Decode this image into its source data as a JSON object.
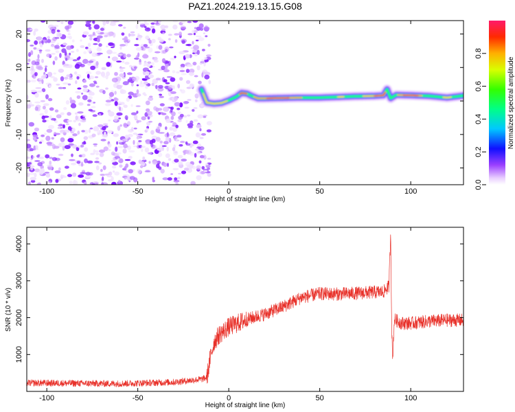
{
  "title": "PAZ1.2024.219.13.15.G08",
  "chart_data": [
    {
      "type": "heatmap",
      "xlabel": "Height of straight line (km)",
      "ylabel": "Frequency (Hz)",
      "xlim": [
        -111,
        129
      ],
      "ylim": [
        -25,
        24
      ],
      "xticks": [
        -100,
        -50,
        0,
        50,
        100
      ],
      "yticks": [
        -20,
        -10,
        0,
        10,
        20
      ],
      "noise_region_x": [
        -111,
        -15
      ],
      "ridge": {
        "x": [
          -15,
          -12,
          -8,
          -4,
          0,
          4,
          7,
          10,
          13,
          16,
          20,
          30,
          40,
          50,
          60,
          70,
          80,
          85,
          87,
          89,
          92,
          100,
          110,
          120,
          129
        ],
        "y": [
          3.5,
          -0.5,
          -0.8,
          -0.6,
          0.2,
          1.2,
          2.4,
          2.2,
          1.4,
          0.8,
          0.8,
          0.9,
          1.0,
          1.0,
          1.2,
          1.4,
          1.5,
          1.7,
          3.5,
          0.8,
          1.8,
          1.7,
          1.5,
          1.0,
          1.6
        ]
      },
      "colorbar": {
        "label": "Normalized spectral amplitude",
        "range": [
          0,
          1
        ],
        "ticks": [
          0.0,
          0.2,
          0.4,
          0.6,
          0.8
        ],
        "tick_labels": [
          "0.0",
          "0.2",
          "0.4",
          "0.6",
          "0.8"
        ]
      }
    },
    {
      "type": "line",
      "xlabel": "Height of straight line (km)",
      "ylabel": "SNR (10 * v/v)",
      "xlim": [
        -111,
        129
      ],
      "ylim": [
        0,
        4450
      ],
      "xticks": [
        -100,
        -50,
        0,
        50,
        100
      ],
      "yticks": [
        1000,
        2000,
        3000,
        4000
      ],
      "color": "#e8312a",
      "trend": {
        "x": [
          -111,
          -60,
          -30,
          -15,
          -12,
          -10,
          -8,
          -5,
          0,
          10,
          20,
          30,
          40,
          50,
          60,
          70,
          80,
          85,
          88,
          89,
          89.5,
          90,
          91,
          95,
          100,
          110,
          120,
          129
        ],
        "y": [
          230,
          210,
          250,
          330,
          380,
          950,
          1350,
          1550,
          1750,
          1950,
          2100,
          2300,
          2550,
          2650,
          2640,
          2660,
          2690,
          2700,
          2850,
          4350,
          1900,
          850,
          1950,
          1850,
          1850,
          1900,
          1930,
          1930
        ]
      }
    }
  ]
}
